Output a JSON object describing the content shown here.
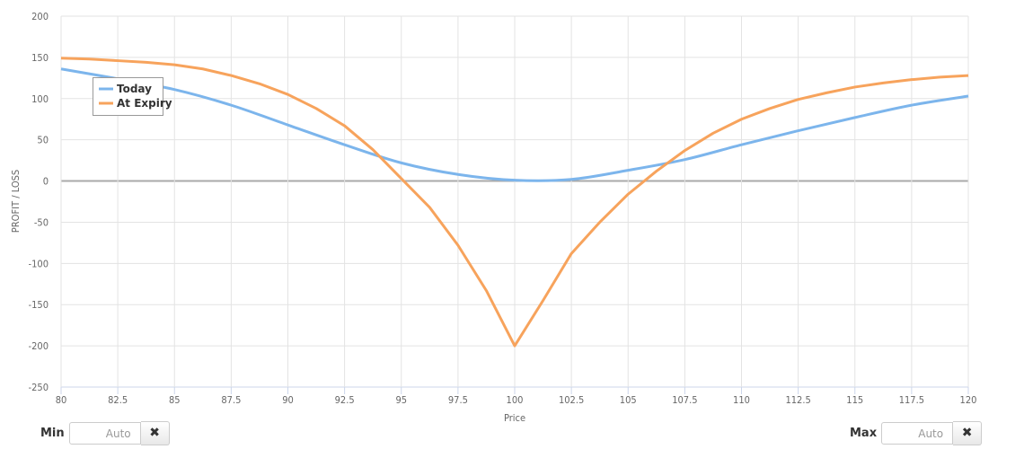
{
  "chart_data": {
    "type": "line",
    "xlabel": "Price",
    "ylabel": "PROFIT / LOSS",
    "xlim": [
      80,
      120
    ],
    "ylim": [
      -250,
      200
    ],
    "xticks": [
      "80",
      "82.5",
      "85",
      "87.5",
      "90",
      "92.5",
      "95",
      "97.5",
      "100",
      "102.5",
      "105",
      "107.5",
      "110",
      "112.5",
      "115",
      "117.5",
      "120"
    ],
    "yticks": [
      "200",
      "150",
      "100",
      "50",
      "0",
      "-50",
      "-100",
      "-150",
      "-200",
      "-250"
    ],
    "grid": true,
    "legend": "top-left",
    "series": [
      {
        "name": "Today",
        "color": "#7cb5ec",
        "x": [
          80,
          82.5,
          85,
          87.5,
          90,
          92.5,
          95,
          97.5,
          100,
          102.5,
          105,
          107.5,
          110,
          112.5,
          115,
          117.5,
          120
        ],
        "y": [
          136,
          124,
          111,
          92,
          68,
          44,
          22,
          8,
          1,
          2,
          13,
          26,
          44,
          61,
          77,
          92,
          103
        ]
      },
      {
        "name": "At Expiry",
        "color": "#f7a35c",
        "x": [
          80,
          81.25,
          82.5,
          83.75,
          85,
          86.25,
          87.5,
          88.75,
          90,
          91.25,
          92.5,
          93.75,
          95,
          96.25,
          97.5,
          98.75,
          100,
          101.25,
          102.5,
          103.75,
          105,
          106.25,
          107.5,
          108.75,
          110,
          111.25,
          112.5,
          113.75,
          115,
          116.25,
          117.5,
          118.75,
          120
        ],
        "y": [
          149,
          148,
          146,
          144,
          141,
          136,
          128,
          118,
          105,
          88,
          67,
          38,
          3,
          -32,
          -78,
          -133,
          -200,
          -145,
          -88,
          -50,
          -16,
          12,
          37,
          58,
          75,
          88,
          99,
          107,
          114,
          119,
          123,
          126,
          128
        ]
      }
    ]
  },
  "controls": {
    "min_label": "Min",
    "max_label": "Max",
    "min_placeholder": "Auto",
    "max_placeholder": "Auto",
    "clear_glyph": "✖"
  }
}
